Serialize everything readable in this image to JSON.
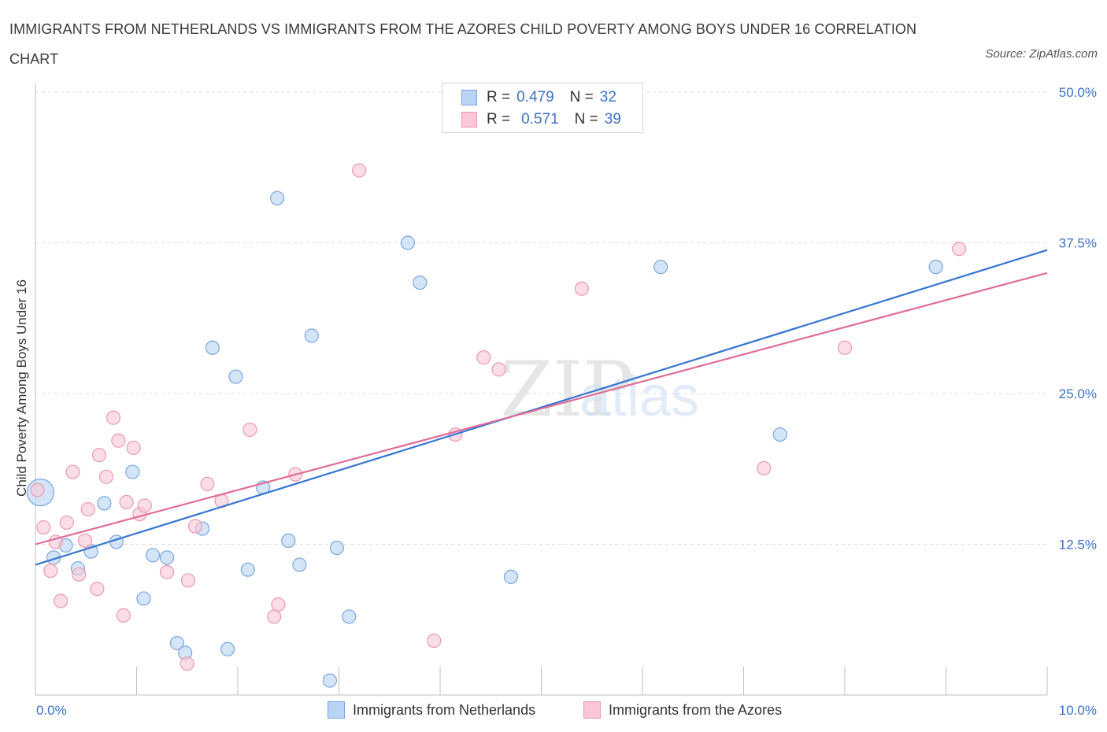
{
  "chart_data": {
    "type": "scatter",
    "title": "IMMIGRANTS FROM NETHERLANDS VS IMMIGRANTS FROM THE AZORES CHILD POVERTY AMONG BOYS UNDER 16 CORRELATION CHART",
    "source": "Source: ZipAtlas.com",
    "ylabel": "Child Poverty Among Boys Under 16",
    "xlabel": "",
    "xlim": [
      0,
      10
    ],
    "ylim": [
      0,
      50
    ],
    "x_tick_labels": [
      "0.0%",
      "10.0%"
    ],
    "y_tick_labels": [
      "12.5%",
      "25.0%",
      "37.5%",
      "50.0%"
    ],
    "y_ticks": [
      12.5,
      25,
      37.5,
      50
    ],
    "watermark": "ZIPatlas",
    "colors": {
      "netherlands_fill": "#b9d3f3",
      "netherlands_line": "#3575d3",
      "azores_fill": "#f9c7d5",
      "azores_line": "#e06b97",
      "tick": "#3b72c9"
    },
    "legend_stats": [
      {
        "r_label": "R =",
        "r": "0.479",
        "n_label": "N =",
        "n": "32"
      },
      {
        "r_label": "R =",
        "r": "0.571",
        "n_label": "N =",
        "n": "39"
      }
    ],
    "series": [
      {
        "name": "Immigrants from Netherlands",
        "trend": {
          "x": [
            0,
            10
          ],
          "y": [
            10.8,
            36.9
          ]
        },
        "points": [
          {
            "x": 0.05,
            "y": 16.8,
            "size": "large"
          },
          {
            "x": 0.18,
            "y": 11.4
          },
          {
            "x": 0.3,
            "y": 12.4
          },
          {
            "x": 0.42,
            "y": 10.5
          },
          {
            "x": 0.55,
            "y": 11.9
          },
          {
            "x": 0.68,
            "y": 15.9
          },
          {
            "x": 0.8,
            "y": 12.7
          },
          {
            "x": 0.96,
            "y": 18.5
          },
          {
            "x": 1.07,
            "y": 8.0
          },
          {
            "x": 1.16,
            "y": 11.6
          },
          {
            "x": 1.3,
            "y": 11.4
          },
          {
            "x": 1.4,
            "y": 4.3
          },
          {
            "x": 1.48,
            "y": 3.5
          },
          {
            "x": 1.65,
            "y": 13.8
          },
          {
            "x": 1.75,
            "y": 28.8
          },
          {
            "x": 1.9,
            "y": 3.8
          },
          {
            "x": 1.98,
            "y": 26.4
          },
          {
            "x": 2.1,
            "y": 10.4
          },
          {
            "x": 2.25,
            "y": 17.2
          },
          {
            "x": 2.39,
            "y": 41.2
          },
          {
            "x": 2.5,
            "y": 12.8
          },
          {
            "x": 2.61,
            "y": 10.8
          },
          {
            "x": 2.73,
            "y": 29.8
          },
          {
            "x": 2.91,
            "y": 1.2
          },
          {
            "x": 2.98,
            "y": 12.2
          },
          {
            "x": 3.1,
            "y": 6.5
          },
          {
            "x": 3.68,
            "y": 37.5
          },
          {
            "x": 3.8,
            "y": 34.2
          },
          {
            "x": 4.7,
            "y": 9.8
          },
          {
            "x": 6.18,
            "y": 35.5
          },
          {
            "x": 7.36,
            "y": 21.6
          },
          {
            "x": 8.9,
            "y": 35.5
          }
        ]
      },
      {
        "name": "Immigrants from the Azores",
        "trend": {
          "x": [
            0,
            10
          ],
          "y": [
            12.5,
            35.0
          ]
        },
        "points": [
          {
            "x": 0.02,
            "y": 17.0
          },
          {
            "x": 0.08,
            "y": 13.9
          },
          {
            "x": 0.15,
            "y": 10.3
          },
          {
            "x": 0.2,
            "y": 12.7
          },
          {
            "x": 0.25,
            "y": 7.8
          },
          {
            "x": 0.31,
            "y": 14.3
          },
          {
            "x": 0.37,
            "y": 18.5
          },
          {
            "x": 0.43,
            "y": 10.0
          },
          {
            "x": 0.49,
            "y": 12.8
          },
          {
            "x": 0.52,
            "y": 15.4
          },
          {
            "x": 0.61,
            "y": 8.8
          },
          {
            "x": 0.63,
            "y": 19.9
          },
          {
            "x": 0.7,
            "y": 18.1
          },
          {
            "x": 0.77,
            "y": 23.0
          },
          {
            "x": 0.82,
            "y": 21.1
          },
          {
            "x": 0.87,
            "y": 6.6
          },
          {
            "x": 0.9,
            "y": 16.0
          },
          {
            "x": 0.97,
            "y": 20.5
          },
          {
            "x": 1.03,
            "y": 15.0
          },
          {
            "x": 1.08,
            "y": 15.7
          },
          {
            "x": 1.3,
            "y": 10.2
          },
          {
            "x": 1.5,
            "y": 2.6
          },
          {
            "x": 1.51,
            "y": 9.5
          },
          {
            "x": 1.58,
            "y": 14.0
          },
          {
            "x": 1.7,
            "y": 17.5
          },
          {
            "x": 1.84,
            "y": 16.1
          },
          {
            "x": 2.12,
            "y": 22.0
          },
          {
            "x": 2.36,
            "y": 6.5
          },
          {
            "x": 2.4,
            "y": 7.5
          },
          {
            "x": 2.57,
            "y": 18.3
          },
          {
            "x": 3.2,
            "y": 43.5
          },
          {
            "x": 3.94,
            "y": 4.5
          },
          {
            "x": 4.15,
            "y": 21.6
          },
          {
            "x": 4.43,
            "y": 28.0
          },
          {
            "x": 4.58,
            "y": 27.0
          },
          {
            "x": 5.4,
            "y": 33.7
          },
          {
            "x": 7.2,
            "y": 18.8
          },
          {
            "x": 8.0,
            "y": 28.8
          },
          {
            "x": 9.13,
            "y": 37.0
          }
        ]
      }
    ]
  }
}
